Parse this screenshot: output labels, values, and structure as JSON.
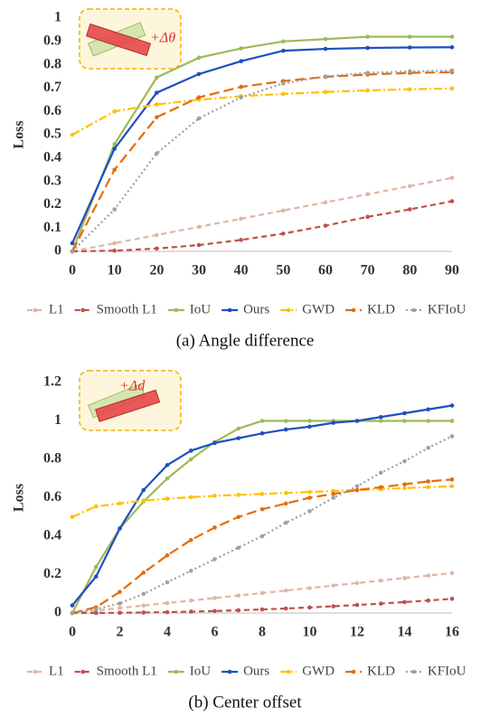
{
  "chart_data": [
    {
      "type": "line",
      "ylabel": "Loss",
      "caption": "(a) Angle difference",
      "annotation": "+Δθ",
      "x": [
        0,
        10,
        20,
        30,
        40,
        50,
        60,
        70,
        80,
        90
      ],
      "xlim": [
        0,
        90
      ],
      "xticks": [
        0,
        10,
        20,
        30,
        40,
        50,
        60,
        70,
        80,
        90
      ],
      "ylim": [
        0,
        1
      ],
      "yticks": [
        0,
        0.1,
        0.2,
        0.3,
        0.4,
        0.5,
        0.6,
        0.7,
        0.8,
        0.9,
        1
      ],
      "series": [
        {
          "name": "L1",
          "color": "#dfb6a6",
          "style": "dashed",
          "values": [
            0,
            0.035,
            0.07,
            0.105,
            0.14,
            0.175,
            0.21,
            0.245,
            0.28,
            0.315
          ]
        },
        {
          "name": "Smooth L1",
          "color": "#c0504d",
          "style": "dashed",
          "values": [
            0,
            0.003,
            0.012,
            0.027,
            0.049,
            0.076,
            0.11,
            0.148,
            0.18,
            0.215
          ]
        },
        {
          "name": "IoU",
          "color": "#9bbb59",
          "style": "solid",
          "values": [
            0,
            0.46,
            0.745,
            0.83,
            0.87,
            0.9,
            0.91,
            0.92,
            0.92,
            0.92
          ]
        },
        {
          "name": "Ours",
          "color": "#1f4fbf",
          "style": "solid",
          "values": [
            0.035,
            0.44,
            0.68,
            0.76,
            0.815,
            0.86,
            0.868,
            0.872,
            0.874,
            0.875
          ]
        },
        {
          "name": "GWD",
          "color": "#ffc000",
          "style": "dashdot",
          "values": [
            0.5,
            0.6,
            0.63,
            0.65,
            0.665,
            0.675,
            0.683,
            0.69,
            0.695,
            0.698
          ]
        },
        {
          "name": "KLD",
          "color": "#e46c0a",
          "style": "longdash",
          "values": [
            0,
            0.35,
            0.575,
            0.66,
            0.705,
            0.73,
            0.748,
            0.758,
            0.765,
            0.768
          ]
        },
        {
          "name": "KFIoU",
          "color": "#a0a0a0",
          "style": "dotted",
          "values": [
            0,
            0.18,
            0.42,
            0.57,
            0.66,
            0.72,
            0.75,
            0.765,
            0.772,
            0.775
          ]
        }
      ]
    },
    {
      "type": "line",
      "ylabel": "Loss",
      "caption": "(b) Center offset",
      "annotation": "+Δd",
      "x": [
        0,
        1,
        2,
        3,
        4,
        5,
        6,
        7,
        8,
        9,
        10,
        11,
        12,
        13,
        14,
        15,
        16
      ],
      "xlim": [
        0,
        16
      ],
      "xticks": [
        0,
        2,
        4,
        6,
        8,
        10,
        12,
        14,
        16
      ],
      "ylim": [
        0,
        1.2
      ],
      "yticks": [
        0,
        0.2,
        0.4,
        0.6,
        0.8,
        1,
        1.2
      ],
      "series": [
        {
          "name": "L1",
          "color": "#dfb6a6",
          "style": "dashed",
          "values": [
            0,
            0.013,
            0.026,
            0.039,
            0.052,
            0.065,
            0.078,
            0.091,
            0.104,
            0.117,
            0.13,
            0.143,
            0.156,
            0.169,
            0.182,
            0.195,
            0.208
          ]
        },
        {
          "name": "Smooth L1",
          "color": "#c0504d",
          "style": "dashed",
          "values": [
            0,
            0.0003,
            0.0012,
            0.0026,
            0.0046,
            0.0073,
            0.0104,
            0.0142,
            0.0186,
            0.0235,
            0.029,
            0.035,
            0.042,
            0.049,
            0.057,
            0.065,
            0.074
          ]
        },
        {
          "name": "IoU",
          "color": "#9bbb59",
          "style": "solid",
          "values": [
            0,
            0.24,
            0.44,
            0.58,
            0.7,
            0.8,
            0.89,
            0.96,
            1,
            1,
            1,
            1,
            1,
            1,
            1,
            1,
            1
          ]
        },
        {
          "name": "Ours",
          "color": "#1f4fbf",
          "style": "solid",
          "values": [
            0.04,
            0.19,
            0.44,
            0.64,
            0.77,
            0.845,
            0.885,
            0.91,
            0.935,
            0.955,
            0.97,
            0.99,
            1,
            1.02,
            1.04,
            1.06,
            1.08
          ]
        },
        {
          "name": "GWD",
          "color": "#ffc000",
          "style": "dashdot",
          "values": [
            0.5,
            0.555,
            0.57,
            0.585,
            0.595,
            0.603,
            0.61,
            0.615,
            0.62,
            0.625,
            0.63,
            0.635,
            0.64,
            0.645,
            0.65,
            0.655,
            0.66
          ]
        },
        {
          "name": "KLD",
          "color": "#e46c0a",
          "style": "longdash",
          "values": [
            0,
            0.03,
            0.11,
            0.21,
            0.3,
            0.38,
            0.445,
            0.5,
            0.54,
            0.57,
            0.6,
            0.62,
            0.64,
            0.655,
            0.67,
            0.685,
            0.695
          ]
        },
        {
          "name": "KFIoU",
          "color": "#a0a0a0",
          "style": "dotted",
          "values": [
            0,
            0.02,
            0.05,
            0.1,
            0.16,
            0.22,
            0.28,
            0.34,
            0.4,
            0.47,
            0.53,
            0.6,
            0.66,
            0.73,
            0.79,
            0.86,
            0.92
          ]
        }
      ]
    }
  ]
}
